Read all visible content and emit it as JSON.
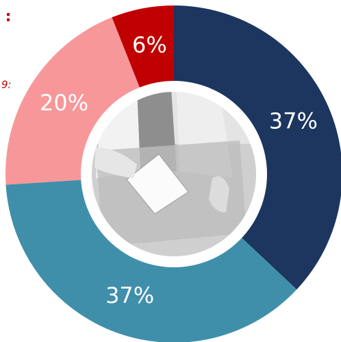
{
  "chart_data": {
    "type": "pie",
    "values": [
      37,
      37,
      20,
      6
    ],
    "value_labels": [
      "37%",
      "37%",
      "20%",
      "6%"
    ],
    "colors": [
      "#1c365f",
      "#3f8fab",
      "#f79799",
      "#c00000"
    ],
    "annotations": [
      ":",
      "9:"
    ]
  }
}
